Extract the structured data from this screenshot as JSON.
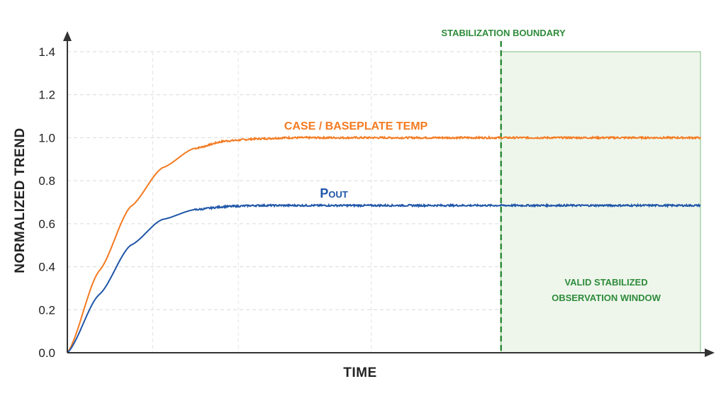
{
  "chart_data": {
    "type": "line",
    "xlabel": "TIME",
    "ylabel": "NORMALIZED TREND",
    "ylim": [
      0,
      1.4
    ],
    "yticks": [
      "0.0",
      "0.2",
      "0.4",
      "0.6",
      "0.8",
      "1.0",
      "1.2",
      "1.4"
    ],
    "grid": true,
    "series": [
      {
        "name": "CASE / BASEPLATE TEMP",
        "color": "#f47a20",
        "x": [
          0,
          5,
          10,
          15,
          20,
          25,
          30,
          35,
          40,
          50,
          60,
          80,
          100
        ],
        "values": [
          0,
          0.38,
          0.68,
          0.86,
          0.95,
          0.985,
          0.995,
          1.0,
          1.0,
          1.0,
          1.0,
          1.0,
          1.0
        ]
      },
      {
        "name": "Pout",
        "name_main": "P",
        "name_sub": "OUT",
        "color": "#1f56a8",
        "x": [
          0,
          5,
          10,
          15,
          20,
          25,
          30,
          35,
          40,
          50,
          60,
          80,
          100
        ],
        "values": [
          0,
          0.27,
          0.5,
          0.62,
          0.665,
          0.68,
          0.685,
          0.685,
          0.685,
          0.685,
          0.685,
          0.685,
          0.685
        ]
      }
    ],
    "annotations": {
      "boundary_label": "STABILIZATION BOUNDARY",
      "boundary_x": 68.5,
      "window_label_line1": "VALID STABILIZED",
      "window_label_line2": "OBSERVATION WINDOW",
      "window_x": [
        68.5,
        100
      ],
      "accent_color": "#2e8b3a"
    }
  }
}
